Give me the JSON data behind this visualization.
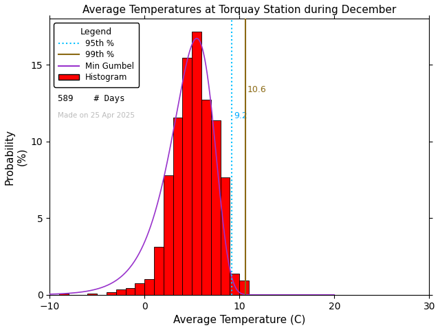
{
  "title": "Average Temperatures at Torquay Station during December",
  "xlabel": "Average Temperature (C)",
  "ylabel": "Probability\n(%)",
  "xlim": [
    -10,
    30
  ],
  "ylim": [
    0,
    18
  ],
  "xticks": [
    -10,
    0,
    10,
    20,
    30
  ],
  "yticks": [
    0,
    5,
    10,
    15
  ],
  "n_days": 589,
  "percentile_95": 9.2,
  "percentile_99": 10.6,
  "percentile_95_color": "#00bfff",
  "percentile_99_color": "#8b6914",
  "percentile_95_label_color": "#00aaff",
  "percentile_99_label_color": "#8b6914",
  "hist_color": "#ff0000",
  "hist_edge_color": "#000000",
  "gumbel_color": "#9933cc",
  "made_on_text": "Made on 25 Apr 2025",
  "made_on_color": "#bbbbbb",
  "bin_edges": [
    -9,
    -8,
    -7,
    -6,
    -5,
    -4,
    -3,
    -2,
    -1,
    0,
    1,
    2,
    3,
    4,
    5,
    6,
    7,
    8,
    9,
    10,
    11,
    12,
    13,
    14,
    15
  ],
  "bin_heights": [
    0.08,
    0.0,
    0.0,
    0.08,
    0.0,
    0.17,
    0.34,
    0.42,
    0.76,
    1.02,
    3.14,
    7.81,
    11.54,
    15.45,
    17.15,
    12.73,
    11.37,
    7.64,
    1.36,
    0.93,
    0.0,
    0.0,
    0.0,
    0.0
  ],
  "gumbel_mu": 5.5,
  "gumbel_beta": 2.2
}
